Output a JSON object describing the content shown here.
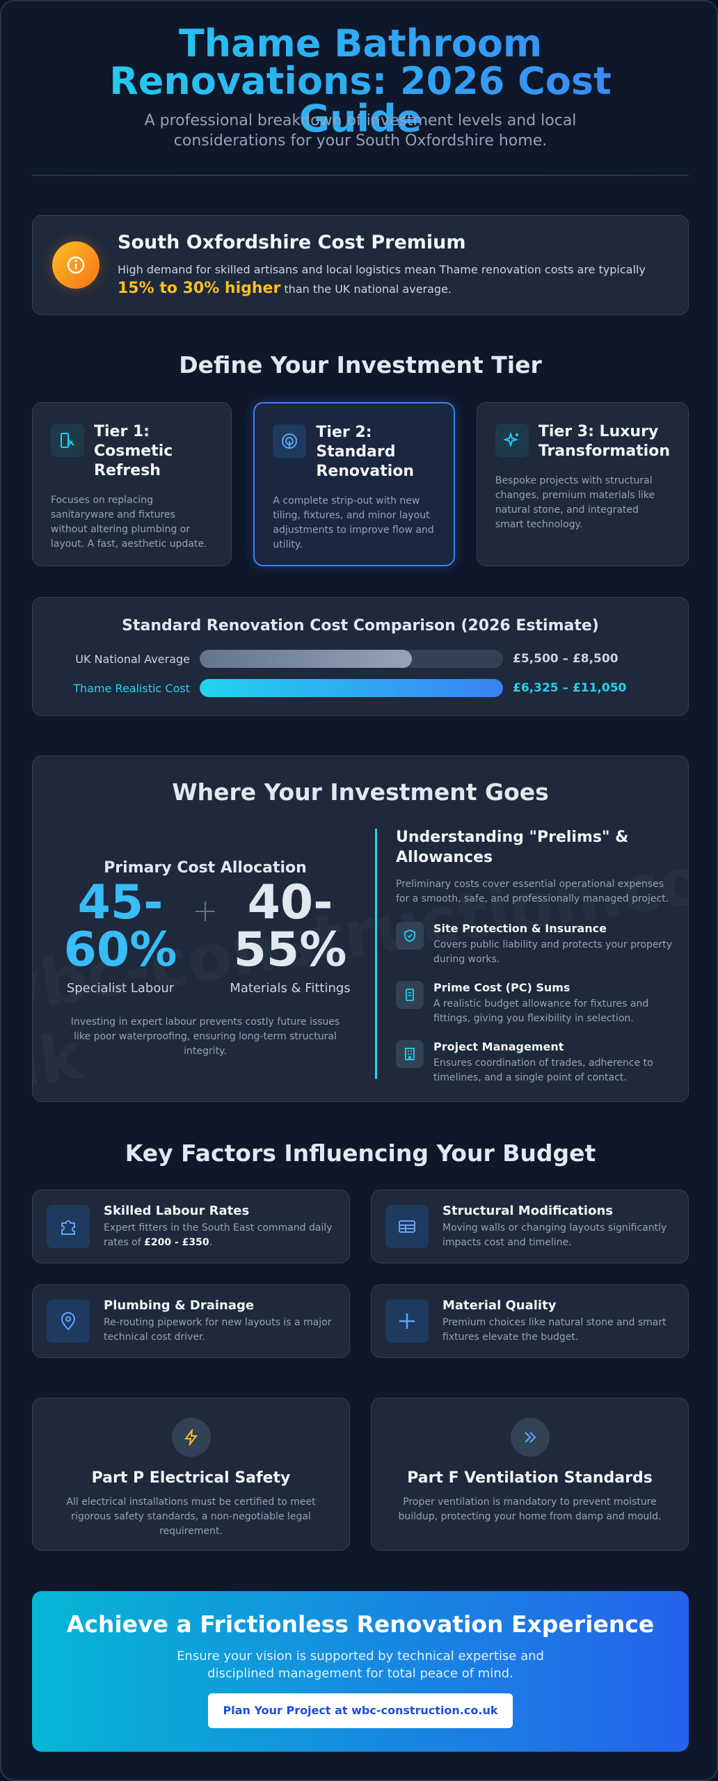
{
  "header": {
    "title": "Thame Bathroom Renovations: 2026 Cost Guide",
    "subtitle": "A professional breakdown of investment levels and local considerations for your South Oxfordshire home."
  },
  "premium": {
    "title": "South Oxfordshire Cost Premium",
    "text_before": "High demand for skilled artisans and local logistics mean Thame renovation costs are typically",
    "highlight": "15% to 30% higher",
    "text_after": "than the UK national average."
  },
  "tiers": {
    "title": "Define Your Investment Tier",
    "items": [
      {
        "name": "Tier 1: Cosmetic Refresh",
        "description": "Focuses on replacing sanitaryware and fixtures without altering plumbing or layout. A fast, aesthetic update."
      },
      {
        "name": "Tier 2: Standard Renovation",
        "description": "A complete strip-out with new tiling, fixtures, and minor layout adjustments to improve flow and utility."
      },
      {
        "name": "Tier 3: Luxury Transformation",
        "description": "Bespoke projects with structural changes, premium materials like natural stone, and integrated smart technology."
      }
    ]
  },
  "comparison": {
    "title": "Standard Renovation Cost Comparison (2026 Estimate)",
    "rows": [
      {
        "label": "UK National Average",
        "range": "£5,500 – £8,500"
      },
      {
        "label": "Thame Realistic Cost",
        "range": "£6,325 – £11,050"
      }
    ]
  },
  "investment": {
    "title": "Where Your Investment Goes",
    "watermark": "wbc-construction.co.uk",
    "allocation": {
      "title": "Primary Cost Allocation",
      "items": [
        {
          "value": "45-60%",
          "label": "Specialist Labour"
        },
        {
          "value": "40-55%",
          "label": "Materials & Fittings"
        }
      ],
      "note": "Investing in expert labour prevents costly future issues like poor waterproofing, ensuring long-term structural integrity."
    },
    "prelims": {
      "title": "Understanding \"Prelims\" & Allowances",
      "intro": "Preliminary costs cover essential operational expenses for a smooth, safe, and professionally managed project.",
      "items": [
        {
          "title": "Site Protection & Insurance",
          "text": "Covers public liability and protects your property during works."
        },
        {
          "title": "Prime Cost (PC) Sums",
          "text": "A realistic budget allowance for fixtures and fittings, giving you flexibility in selection."
        },
        {
          "title": "Project Management",
          "text": "Ensures coordination of trades, adherence to timelines, and a single point of contact."
        }
      ]
    }
  },
  "factors": {
    "title": "Key Factors Influencing Your Budget",
    "items": [
      {
        "title": "Skilled Labour Rates",
        "text_before": "Expert fitters in the South East command daily rates of",
        "bold": "£200 - £350",
        "text_after": "."
      },
      {
        "title": "Structural Modifications",
        "text": "Moving walls or changing layouts significantly impacts cost and timeline."
      },
      {
        "title": "Plumbing & Drainage",
        "text": "Re-routing pipework for new layouts is a major technical cost driver."
      },
      {
        "title": "Material Quality",
        "text": "Premium choices like natural stone and smart fixtures elevate the budget."
      }
    ]
  },
  "standards": [
    {
      "title": "Part P Electrical Safety",
      "text": "All electrical installations must be certified to meet rigorous safety standards, a non-negotiable legal requirement."
    },
    {
      "title": "Part F Ventilation Standards",
      "text": "Proper ventilation is mandatory to prevent moisture buildup, protecting your home from damp and mould."
    }
  ],
  "cta": {
    "title": "Achieve a Frictionless Renovation Experience",
    "text": "Ensure your vision is supported by technical expertise and disciplined management for total peace of mind.",
    "button": "Plan Your Project at wbc-construction.co.uk"
  }
}
